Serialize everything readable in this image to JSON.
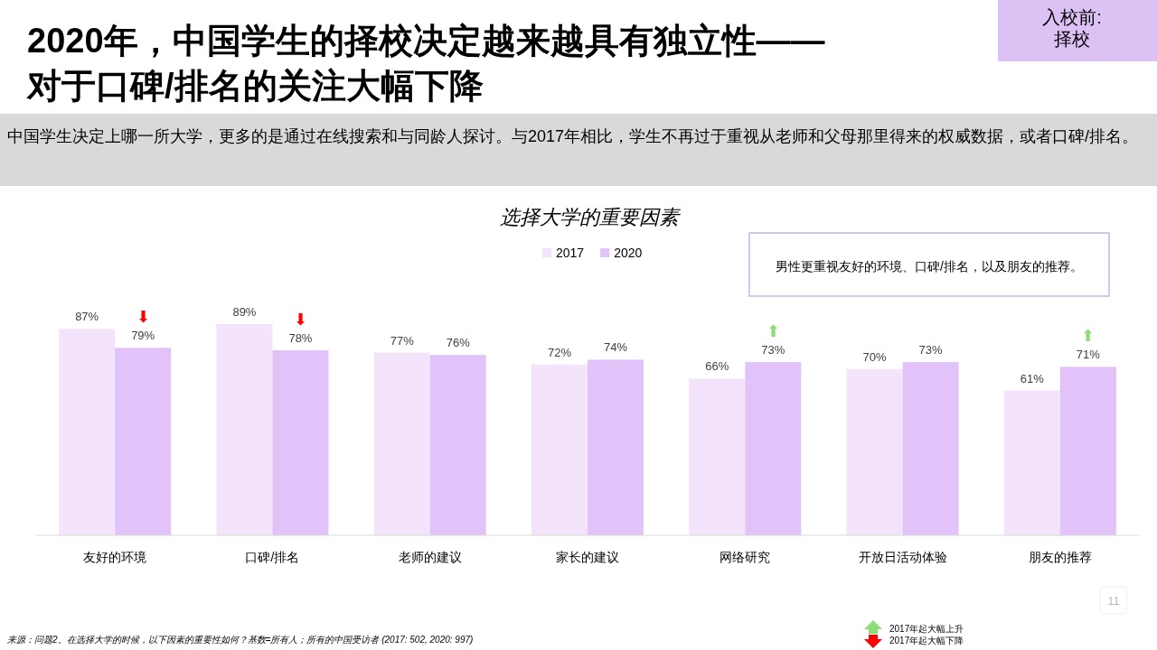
{
  "chart_data": {
    "type": "bar",
    "title": "2020年，中国学生的择校决定越来越具有独立性——\n对于口碑/排名的关注大幅下降",
    "subtitle": "中国学生决定上哪一所大学，更多的是通过在线搜索和与同龄人探讨。与2017年相比，学生不再过于重视从老师和父母那里得来的权威数据，或者口碑/排名。",
    "categories": [
      "友好的环境",
      "口碑/排名",
      "老师的建议",
      "家长的建议",
      "网络研究",
      "开放日活动体验",
      "朋友的推荐"
    ],
    "series": [
      {
        "name": "2017",
        "color": "#f3e4fb",
        "values": [
          87,
          89,
          77,
          72,
          66,
          70,
          61
        ],
        "value_labels": [
          "87%",
          "89%",
          "77%",
          "72%",
          "66%",
          "70%",
          "61%"
        ]
      },
      {
        "name": "2020",
        "color": "#e2c3f9",
        "values": [
          79,
          78,
          76,
          74,
          73,
          73,
          71
        ],
        "value_labels": [
          "79%",
          "78%",
          "76%",
          "74%",
          "73%",
          "73%",
          "71%"
        ]
      }
    ],
    "legend": "top",
    "annotations": [
      "入校前:\n择校",
      "选择大学的重要因素",
      "男性更重视友好的环境、口碑/排名，以及朋友的推荐。",
      "来源：问题2。在选择大学的时候，以下因素的重要性如何？基数=所有人；所有的中国受访者 (2017: 502, 2020: 997)",
      "2017年起大幅上升",
      "2017年起大幅下降",
      "11",
      {
        "text": "⬇",
        "x": "友好的环境",
        "y": 79
      },
      {
        "text": "⬇",
        "x": "口碑/排名",
        "y": 78
      },
      {
        "text": "⬆",
        "x": "网络研究",
        "y": 73
      },
      {
        "text": "⬆",
        "x": "朋友的推荐",
        "y": 71
      }
    ]
  }
}
